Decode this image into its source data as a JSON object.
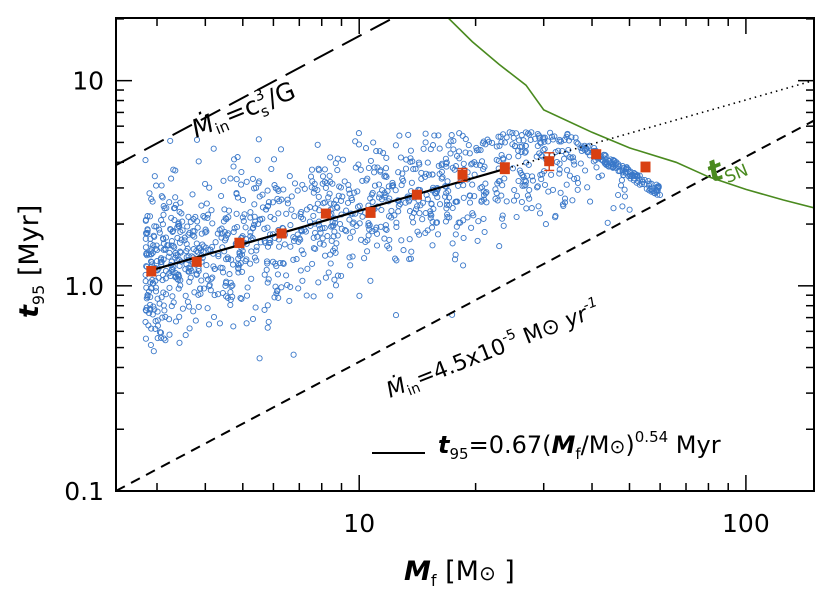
{
  "chart_data": {
    "type": "scatter",
    "title": "",
    "xlabel": {
      "var": "M",
      "sub": "f",
      "unit_open": " [M",
      "sun": "⊙",
      "unit_close": " ]"
    },
    "ylabel": {
      "var": "t",
      "sub": "95",
      "unit": " [Myr]"
    },
    "x_scale": "log",
    "y_scale": "log",
    "xlim": [
      2.35,
      150
    ],
    "ylim": [
      0.1,
      20.2
    ],
    "x_ticks": [
      {
        "value": 10,
        "label": "10"
      },
      {
        "value": 100,
        "label": "100"
      }
    ],
    "y_ticks": [
      {
        "value": 0.1,
        "label": "0.1"
      },
      {
        "value": 1,
        "label": "1.0"
      },
      {
        "value": 10,
        "label": "10"
      }
    ],
    "grid": false,
    "colors": {
      "scatter": "#3a78c9",
      "binned": "#d94012",
      "fit": "#000000",
      "tsn": "#4a8a1f"
    },
    "scatter_note": "cloud of roughly 1300 simulated stars, M_f 2.8–60 Msun",
    "binned_points": [
      {
        "x": 2.9,
        "y": 1.18,
        "yerr": 0.06
      },
      {
        "x": 3.8,
        "y": 1.31,
        "yerr": 0.06
      },
      {
        "x": 4.9,
        "y": 1.62,
        "yerr": 0.08
      },
      {
        "x": 6.3,
        "y": 1.8,
        "yerr": 0.08
      },
      {
        "x": 8.2,
        "y": 2.25,
        "yerr": 0.1
      },
      {
        "x": 10.7,
        "y": 2.28,
        "yerr": 0.12
      },
      {
        "x": 14.1,
        "y": 2.78,
        "yerr": 0.12
      },
      {
        "x": 18.5,
        "y": 3.48,
        "yerr": 0.25
      },
      {
        "x": 23.8,
        "y": 3.75,
        "yerr": 0.22
      },
      {
        "x": 31.0,
        "y": 4.05,
        "yerr": 0.4
      },
      {
        "x": 41.0,
        "y": 4.38,
        "yerr": 0.2
      },
      {
        "x": 55.0,
        "y": 3.8,
        "yerr": 0.2
      }
    ],
    "fit": {
      "a": 0.67,
      "b": 0.54,
      "solid_range": [
        2.9,
        24
      ],
      "dotted_range": [
        24,
        150
      ]
    },
    "mdot_cs_line": {
      "k": 1.65
    },
    "mdot_const_line": {
      "k": 0.0426
    },
    "tsn_curve": [
      {
        "x": 17,
        "y": 20.2
      },
      {
        "x": 19.6,
        "y": 15.5
      },
      {
        "x": 23,
        "y": 12
      },
      {
        "x": 27,
        "y": 9.5
      },
      {
        "x": 30,
        "y": 7.2
      },
      {
        "x": 40,
        "y": 5.6
      },
      {
        "x": 50,
        "y": 4.7
      },
      {
        "x": 66,
        "y": 4.0
      },
      {
        "x": 80,
        "y": 3.4
      },
      {
        "x": 100,
        "y": 2.95
      },
      {
        "x": 125,
        "y": 2.62
      },
      {
        "x": 150,
        "y": 2.4
      }
    ],
    "annotations": {
      "cs_label": {
        "mdot": "Ṁ",
        "sub": "in",
        "eq": "=c",
        "sub2": "s",
        "sup": "3",
        "tail": "/G"
      },
      "const_label": {
        "mdot": "Ṁ",
        "sub": "in",
        "eq": "=4.5x10",
        "sup": "-5",
        "unit": " M",
        "sun": "⊙",
        "tail": " yr",
        "sup2": "-1"
      },
      "tsn_label": {
        "var": "t",
        "sub": "SN"
      },
      "fit_legend": {
        "var": "t",
        "sub": "95",
        "eq": "=0.67(",
        "var2": "M",
        "sub2": "f",
        "mid": "/M",
        "sun": "⊙",
        "close": ")",
        "sup": "0.54",
        "unit": " Myr"
      }
    }
  }
}
